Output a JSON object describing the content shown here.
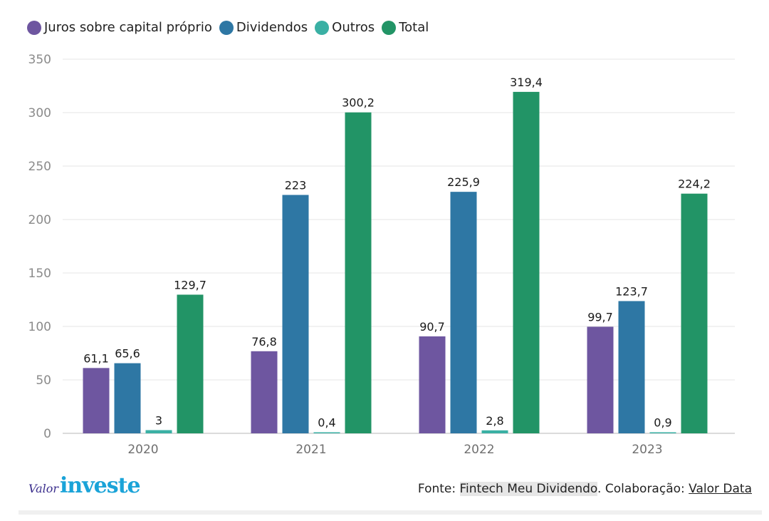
{
  "colors": {
    "juros": "#6e56a0",
    "dividendos": "#2e77a4",
    "outros": "#3ab0a4",
    "total": "#229466",
    "grid": "#e4e4e4",
    "axis": "#cfcfcf"
  },
  "legend": [
    {
      "label": "Juros sobre capital próprio",
      "color": "#6e56a0"
    },
    {
      "label": "Dividendos",
      "color": "#2e77a4"
    },
    {
      "label": "Outros",
      "color": "#3ab0a4"
    },
    {
      "label": "Total",
      "color": "#229466"
    }
  ],
  "chart_data": {
    "type": "bar",
    "categories": [
      "2020",
      "2021",
      "2022",
      "2023"
    ],
    "series": [
      {
        "name": "Juros sobre capital próprio",
        "color": "#6e56a0",
        "values": [
          61.1,
          76.8,
          90.7,
          99.7
        ],
        "labels": [
          "61,1",
          "76,8",
          "90,7",
          "99,7"
        ]
      },
      {
        "name": "Dividendos",
        "color": "#2e77a4",
        "values": [
          65.6,
          223,
          225.9,
          123.7
        ],
        "labels": [
          "65,6",
          "223",
          "225,9",
          "123,7"
        ]
      },
      {
        "name": "Outros",
        "color": "#3ab0a4",
        "values": [
          3,
          0.4,
          2.8,
          0.9
        ],
        "labels": [
          "3",
          "0,4",
          "2,8",
          "0,9"
        ]
      },
      {
        "name": "Total",
        "color": "#229466",
        "values": [
          129.7,
          300.2,
          319.4,
          224.2
        ],
        "labels": [
          "129,7",
          "300,2",
          "319,4",
          "224,2"
        ]
      }
    ],
    "ylim": [
      0,
      350
    ],
    "yticks": [
      0,
      50,
      100,
      150,
      200,
      250,
      300,
      350
    ],
    "ytick_labels": [
      "0",
      "50",
      "100",
      "150",
      "200",
      "250",
      "300",
      "350"
    ],
    "grid": true,
    "legend_position": "top-left"
  },
  "footer": {
    "logo_valor": "Valor",
    "logo_investe": "investe",
    "source_prefix": "Fonte: ",
    "source_name": "Fintech Meu Dividendo",
    "collab_prefix": ". Colaboração: ",
    "collab_name": "Valor Data"
  }
}
